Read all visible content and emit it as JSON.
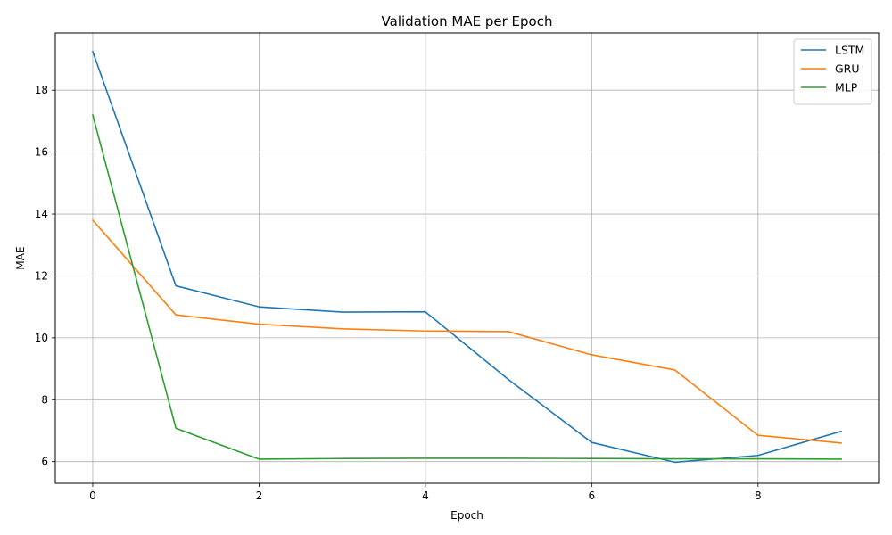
{
  "chart_data": {
    "type": "line",
    "title": "Validation MAE per Epoch",
    "xlabel": "Epoch",
    "ylabel": "MAE",
    "x": [
      0,
      1,
      2,
      3,
      4,
      5,
      6,
      7,
      8,
      9
    ],
    "xlim": [
      -0.45,
      9.45
    ],
    "ylim": [
      5.3,
      19.85
    ],
    "xticks": [
      0,
      2,
      4,
      6,
      8
    ],
    "yticks": [
      6,
      8,
      10,
      12,
      14,
      16,
      18
    ],
    "grid": true,
    "legend_position": "top-right",
    "series": [
      {
        "name": "LSTM",
        "color": "#1f77b4",
        "values": [
          19.25,
          11.68,
          11.0,
          10.83,
          10.84,
          8.65,
          6.62,
          5.98,
          6.2,
          6.98
        ]
      },
      {
        "name": "GRU",
        "color": "#ff7f0e",
        "values": [
          13.8,
          10.74,
          10.44,
          10.29,
          10.22,
          10.2,
          9.45,
          8.96,
          6.85,
          6.6
        ]
      },
      {
        "name": "MLP",
        "color": "#2ca02c",
        "values": [
          17.2,
          7.08,
          6.08,
          6.1,
          6.11,
          6.11,
          6.1,
          6.09,
          6.09,
          6.08
        ]
      }
    ]
  }
}
